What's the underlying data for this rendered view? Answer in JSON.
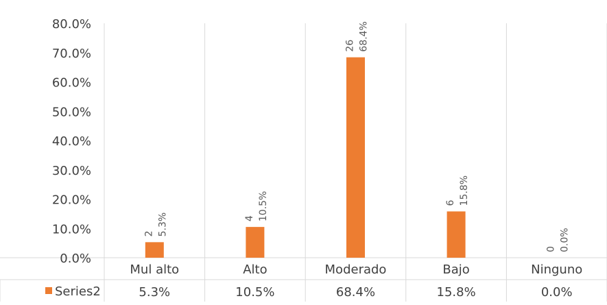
{
  "chart_data": {
    "type": "bar",
    "categories": [
      "Mul alto",
      "Alto",
      "Moderado",
      "Bajo",
      "Ninguno"
    ],
    "series": [
      {
        "name": "Series2",
        "values": [
          5.3,
          10.5,
          68.4,
          15.8,
          0.0
        ],
        "counts": [
          2,
          4,
          26,
          6,
          0
        ],
        "labels": [
          "5.3%",
          "10.5%",
          "68.4%",
          "15.8%",
          "0.0%"
        ]
      }
    ],
    "y_ticks": [
      "80.0%",
      "70.0%",
      "60.0%",
      "50.0%",
      "40.0%",
      "30.0%",
      "20.0%",
      "10.0%",
      "0.0%"
    ],
    "ylim": [
      0,
      80
    ],
    "legend_position": "data-table-bottom",
    "grid": "vertical category separators",
    "bar_color": "#ED7D31"
  }
}
